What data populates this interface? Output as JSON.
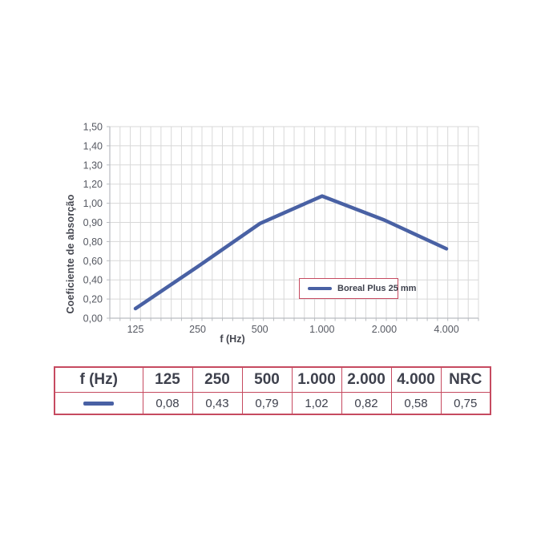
{
  "chart_data": {
    "type": "line",
    "title": "",
    "xlabel": "f (Hz)",
    "ylabel": "Coeficiente de absorção",
    "categories": [
      "125",
      "250",
      "500",
      "1.000",
      "2.000",
      "4.000"
    ],
    "series": [
      {
        "name": "Boreal Plus 25 mm",
        "values": [
          0.08,
          0.43,
          0.79,
          1.02,
          0.82,
          0.58
        ]
      }
    ],
    "y_tick_labels": [
      "1,50",
      "1,40",
      "1,30",
      "1,20",
      "1,00",
      "0,90",
      "0,80",
      "0,60",
      "0,40",
      "0,20",
      "0,00"
    ],
    "ylim": [
      0,
      1.6
    ],
    "grid": true,
    "legend_position": "inside-bottom-right",
    "line_color": "#4961a4"
  },
  "table": {
    "headers": [
      "f (Hz)",
      "125",
      "250",
      "500",
      "1.000",
      "2.000",
      "4.000",
      "NRC"
    ],
    "values": [
      "0,08",
      "0,43",
      "0,79",
      "1,02",
      "0,82",
      "0,58",
      "0,75"
    ]
  },
  "colors": {
    "line_blue": "#4961a4",
    "accent_red": "#c64a60",
    "dark_text": "#3e414d",
    "tick_text": "#565962",
    "grid": "#d8d8d8",
    "axis": "#b9bcc1"
  }
}
